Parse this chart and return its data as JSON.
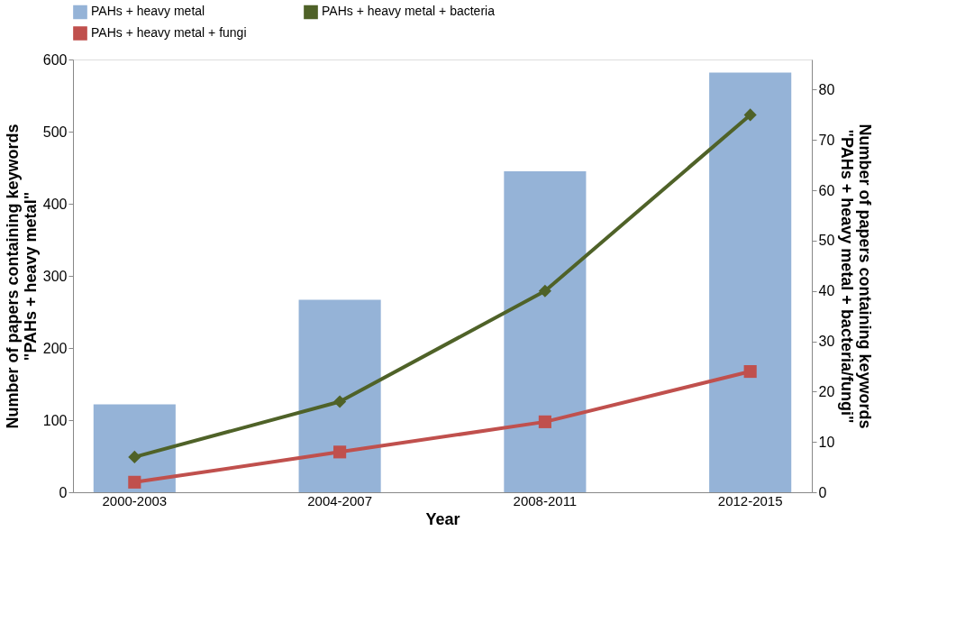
{
  "chart_data": {
    "type": "bar",
    "xlabel": "Year",
    "ylabel": "Number of papers containing keywords\n\"PAHs + heavy metal\"",
    "y2label": "Number of papers containing keywords\n\"PAHs + heavy metal + bacteria/fungi\"",
    "categories": [
      "2000-2003",
      "2004-2007",
      "2008-2011",
      "2012-2015"
    ],
    "series": [
      {
        "name": "PAHs + heavy metal",
        "color": "#95b3d7",
        "values": [
          122,
          267,
          445,
          582
        ]
      },
      {
        "name": "PAHs + heavy metal + bacteria",
        "type": "line",
        "axis": "y2",
        "marker": "diamond",
        "color": "#4f6228",
        "values": [
          7,
          18,
          40,
          75
        ]
      },
      {
        "name": "PAHs + heavy metal + fungi",
        "type": "line",
        "axis": "y2",
        "marker": "square",
        "color": "#c0504d",
        "values": [
          2,
          8,
          14,
          24
        ]
      }
    ],
    "ylim": [
      0,
      600
    ],
    "yticks": [
      0,
      100,
      200,
      300,
      400,
      500,
      600
    ],
    "y2lim": [
      0,
      86
    ],
    "y2ticks": [
      0,
      10,
      20,
      30,
      40,
      50,
      60,
      70,
      80
    ],
    "grid": false,
    "legend": "top"
  }
}
